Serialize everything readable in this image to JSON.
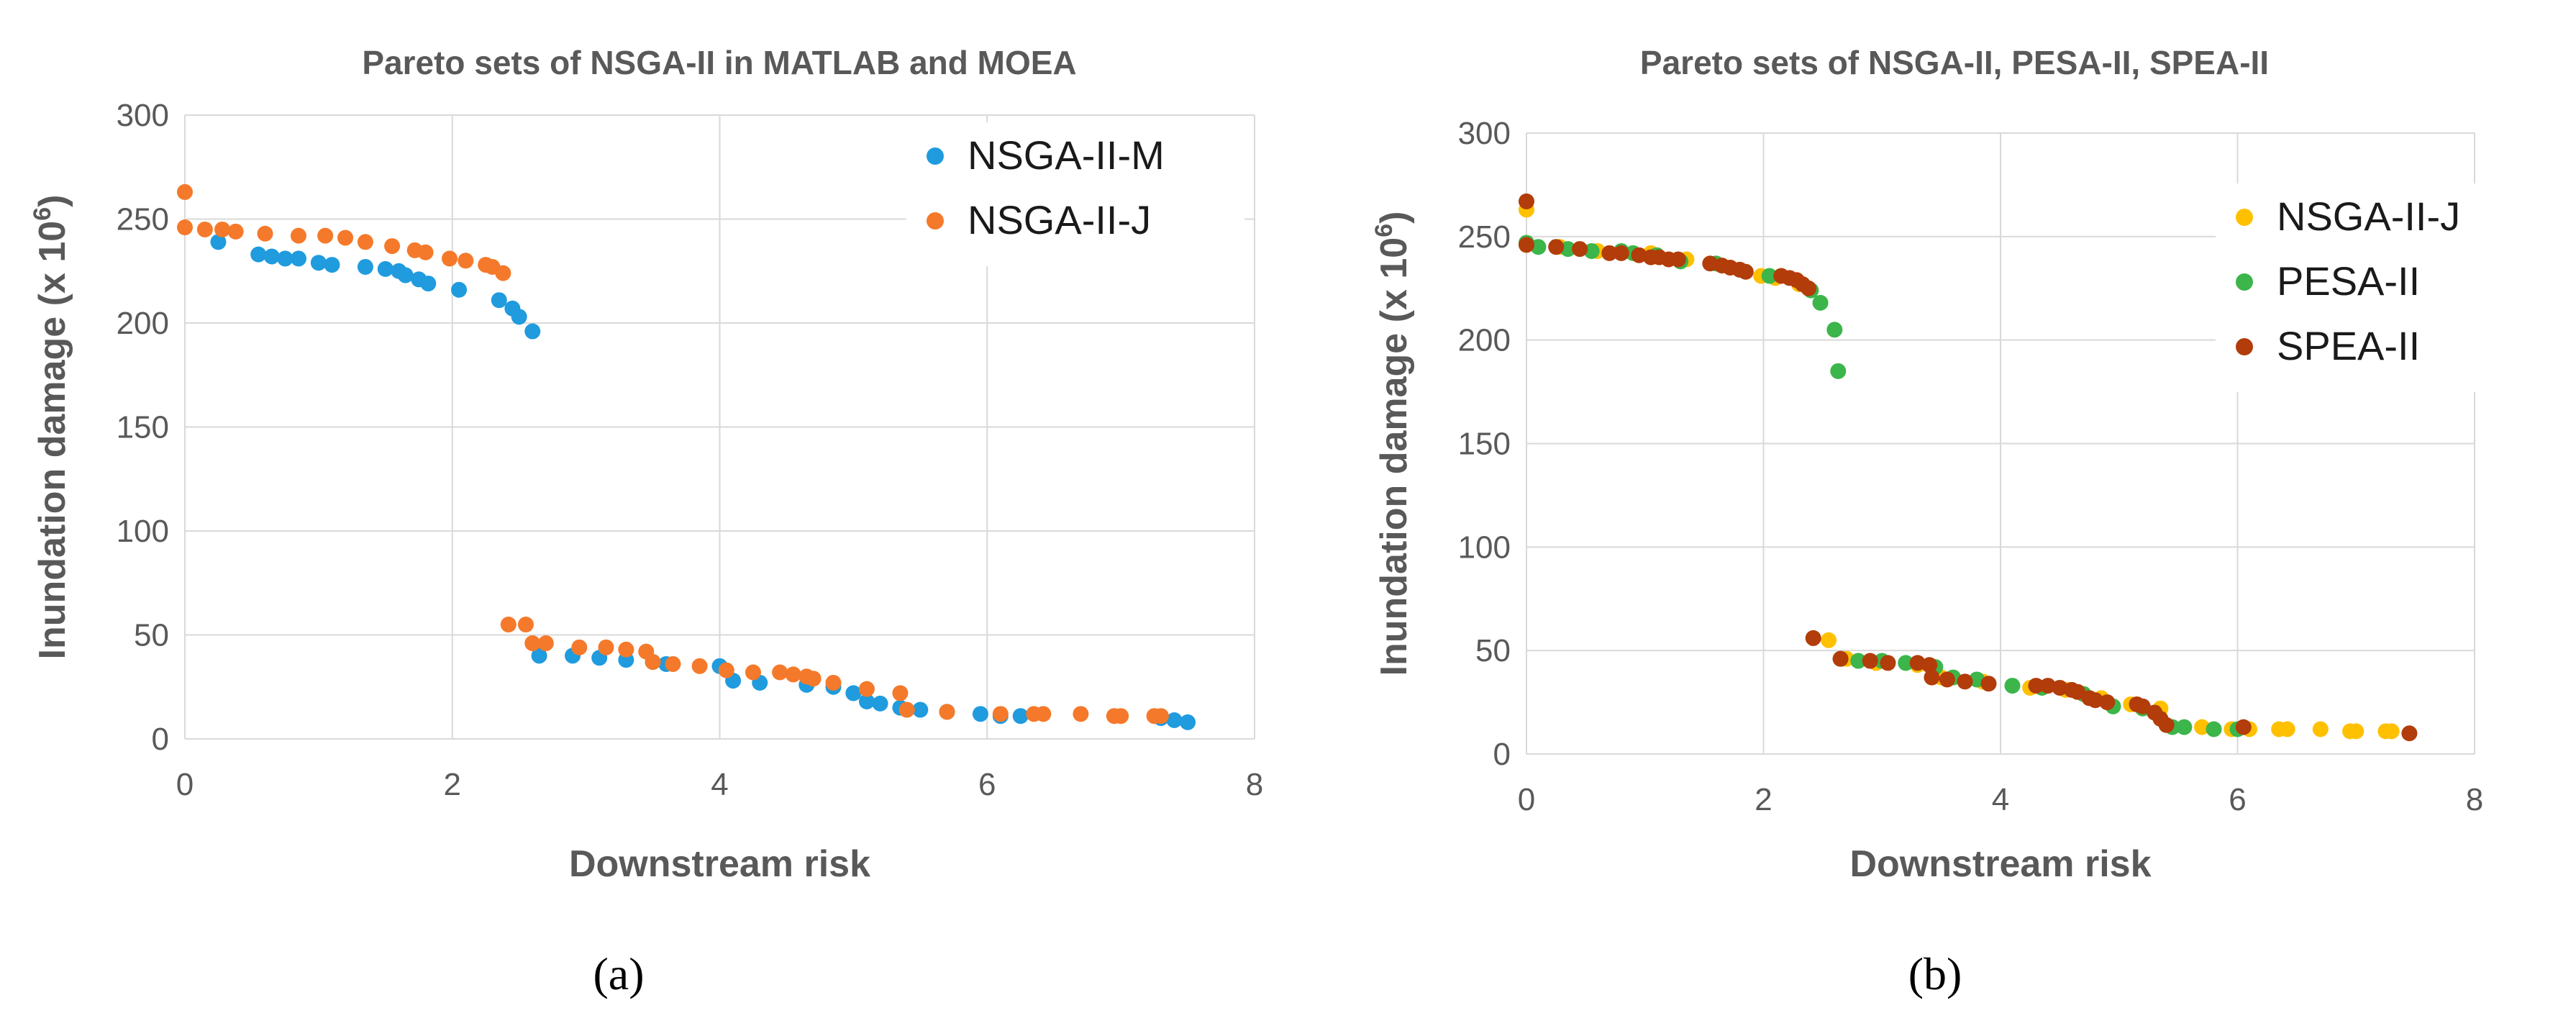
{
  "chart_data": [
    {
      "type": "scatter",
      "panel_label": "(a)",
      "title": "Pareto sets of NSGA-II in MATLAB and MOEA",
      "xlabel": "Downstream risk",
      "ylabel": "Inundation damage (x 10",
      "ylabel_exponent": "6",
      "ylabel_close": ")",
      "xlim": [
        0,
        8
      ],
      "ylim": [
        0,
        300
      ],
      "xticks": [
        0,
        2,
        4,
        6,
        8
      ],
      "yticks": [
        0,
        50,
        100,
        150,
        200,
        250,
        300
      ],
      "grid": true,
      "legend_position": "top-right",
      "series": [
        {
          "name": "NSGA-II-M",
          "color": "#1f9bde",
          "points": [
            [
              0.25,
              239
            ],
            [
              0.55,
              233
            ],
            [
              0.65,
              232
            ],
            [
              0.75,
              231
            ],
            [
              0.85,
              231
            ],
            [
              1.0,
              229
            ],
            [
              1.1,
              228
            ],
            [
              1.35,
              227
            ],
            [
              1.5,
              226
            ],
            [
              1.6,
              225
            ],
            [
              1.65,
              223
            ],
            [
              1.75,
              221
            ],
            [
              1.82,
              219
            ],
            [
              2.05,
              216
            ],
            [
              2.35,
              211
            ],
            [
              2.45,
              207
            ],
            [
              2.5,
              203
            ],
            [
              2.6,
              196
            ],
            [
              2.65,
              40
            ],
            [
              2.9,
              40
            ],
            [
              3.1,
              39
            ],
            [
              3.3,
              38
            ],
            [
              3.5,
              37
            ],
            [
              3.6,
              36
            ],
            [
              4.0,
              35
            ],
            [
              4.1,
              28
            ],
            [
              4.3,
              27
            ],
            [
              4.65,
              26
            ],
            [
              4.85,
              25
            ],
            [
              5.0,
              22
            ],
            [
              5.1,
              18
            ],
            [
              5.2,
              17
            ],
            [
              5.35,
              15
            ],
            [
              5.5,
              14
            ],
            [
              5.7,
              13
            ],
            [
              5.95,
              12
            ],
            [
              6.1,
              11
            ],
            [
              6.25,
              11
            ],
            [
              7.3,
              10
            ],
            [
              7.4,
              9
            ],
            [
              7.5,
              8
            ]
          ]
        },
        {
          "name": "NSGA-II-J",
          "color": "#f5792a",
          "points": [
            [
              0.0,
              263
            ],
            [
              0.0,
              246
            ],
            [
              0.15,
              245
            ],
            [
              0.28,
              245
            ],
            [
              0.38,
              244
            ],
            [
              0.6,
              243
            ],
            [
              0.85,
              242
            ],
            [
              1.05,
              242
            ],
            [
              1.2,
              241
            ],
            [
              1.35,
              239
            ],
            [
              1.55,
              237
            ],
            [
              1.72,
              235
            ],
            [
              1.8,
              234
            ],
            [
              1.98,
              231
            ],
            [
              2.1,
              230
            ],
            [
              2.25,
              228
            ],
            [
              2.3,
              227
            ],
            [
              2.38,
              224
            ],
            [
              2.42,
              55
            ],
            [
              2.55,
              55
            ],
            [
              2.6,
              46
            ],
            [
              2.7,
              46
            ],
            [
              2.95,
              44
            ],
            [
              3.15,
              44
            ],
            [
              3.3,
              43
            ],
            [
              3.45,
              42
            ],
            [
              3.5,
              37
            ],
            [
              3.65,
              36
            ],
            [
              3.85,
              35
            ],
            [
              4.05,
              33
            ],
            [
              4.25,
              32
            ],
            [
              4.45,
              32
            ],
            [
              4.55,
              31
            ],
            [
              4.65,
              30
            ],
            [
              4.7,
              29
            ],
            [
              4.85,
              27
            ],
            [
              5.1,
              24
            ],
            [
              5.35,
              22
            ],
            [
              5.4,
              14
            ],
            [
              5.7,
              13
            ],
            [
              6.1,
              12
            ],
            [
              6.35,
              12
            ],
            [
              6.42,
              12
            ],
            [
              6.7,
              12
            ],
            [
              6.95,
              11
            ],
            [
              7.0,
              11
            ],
            [
              7.25,
              11
            ],
            [
              7.3,
              11
            ]
          ]
        }
      ]
    },
    {
      "type": "scatter",
      "panel_label": "(b)",
      "title": "Pareto sets of NSGA-II, PESA-II, SPEA-II",
      "xlabel": "Downstream risk",
      "ylabel": "Inundation damage (x 10",
      "ylabel_exponent": "6",
      "ylabel_close": ")",
      "xlim": [
        0,
        8
      ],
      "ylim": [
        0,
        300
      ],
      "xticks": [
        0,
        2,
        4,
        6,
        8
      ],
      "yticks": [
        0,
        50,
        100,
        150,
        200,
        250,
        300
      ],
      "grid": true,
      "legend_position": "top-right",
      "series": [
        {
          "name": "NSGA-II-J",
          "color": "#ffc000",
          "points": [
            [
              0.0,
              263
            ],
            [
              0.0,
              246
            ],
            [
              0.28,
              245
            ],
            [
              0.6,
              243
            ],
            [
              1.05,
              242
            ],
            [
              1.35,
              239
            ],
            [
              1.72,
              235
            ],
            [
              1.98,
              231
            ],
            [
              2.1,
              230
            ],
            [
              2.3,
              227
            ],
            [
              2.55,
              55
            ],
            [
              2.7,
              46
            ],
            [
              2.95,
              44
            ],
            [
              3.3,
              43
            ],
            [
              3.5,
              37
            ],
            [
              3.85,
              35
            ],
            [
              4.25,
              32
            ],
            [
              4.55,
              31
            ],
            [
              4.7,
              29
            ],
            [
              4.85,
              27
            ],
            [
              5.1,
              24
            ],
            [
              5.35,
              22
            ],
            [
              5.7,
              13
            ],
            [
              5.95,
              12
            ],
            [
              6.1,
              12
            ],
            [
              6.35,
              12
            ],
            [
              6.42,
              12
            ],
            [
              6.7,
              12
            ],
            [
              6.95,
              11
            ],
            [
              7.0,
              11
            ],
            [
              7.25,
              11
            ],
            [
              7.3,
              11
            ]
          ]
        },
        {
          "name": "PESA-II",
          "color": "#3cb54a",
          "points": [
            [
              0.0,
              247
            ],
            [
              0.1,
              245
            ],
            [
              0.35,
              244
            ],
            [
              0.55,
              243
            ],
            [
              0.8,
              243
            ],
            [
              0.9,
              242
            ],
            [
              1.1,
              241
            ],
            [
              1.3,
              238
            ],
            [
              1.6,
              237
            ],
            [
              1.8,
              234
            ],
            [
              2.05,
              231
            ],
            [
              2.4,
              224
            ],
            [
              2.48,
              218
            ],
            [
              2.6,
              205
            ],
            [
              2.63,
              185
            ],
            [
              2.65,
              46
            ],
            [
              2.8,
              45
            ],
            [
              3.0,
              45
            ],
            [
              3.2,
              44
            ],
            [
              3.45,
              42
            ],
            [
              3.6,
              37
            ],
            [
              3.8,
              36
            ],
            [
              4.1,
              33
            ],
            [
              4.35,
              32
            ],
            [
              4.7,
              29
            ],
            [
              4.95,
              23
            ],
            [
              5.2,
              22
            ],
            [
              5.45,
              13
            ],
            [
              5.55,
              13
            ],
            [
              5.8,
              12
            ],
            [
              6.0,
              12
            ]
          ]
        },
        {
          "name": "SPEA-II",
          "color": "#b23c0a",
          "points": [
            [
              0.0,
              267
            ],
            [
              0.0,
              246
            ],
            [
              0.25,
              245
            ],
            [
              0.45,
              244
            ],
            [
              0.7,
              242
            ],
            [
              0.8,
              242
            ],
            [
              0.95,
              241
            ],
            [
              1.05,
              240
            ],
            [
              1.12,
              240
            ],
            [
              1.2,
              239
            ],
            [
              1.28,
              239
            ],
            [
              1.55,
              237
            ],
            [
              1.65,
              236
            ],
            [
              1.72,
              235
            ],
            [
              1.8,
              234
            ],
            [
              1.85,
              233
            ],
            [
              2.15,
              231
            ],
            [
              2.22,
              230
            ],
            [
              2.28,
              229
            ],
            [
              2.33,
              227
            ],
            [
              2.38,
              225
            ],
            [
              2.42,
              56
            ],
            [
              2.65,
              46
            ],
            [
              2.9,
              45
            ],
            [
              3.05,
              44
            ],
            [
              3.3,
              44
            ],
            [
              3.4,
              43
            ],
            [
              3.42,
              37
            ],
            [
              3.55,
              36
            ],
            [
              3.7,
              35
            ],
            [
              3.9,
              34
            ],
            [
              4.3,
              33
            ],
            [
              4.4,
              33
            ],
            [
              4.5,
              32
            ],
            [
              4.6,
              31
            ],
            [
              4.65,
              30
            ],
            [
              4.75,
              27
            ],
            [
              4.8,
              26
            ],
            [
              4.9,
              25
            ],
            [
              5.15,
              24
            ],
            [
              5.2,
              23
            ],
            [
              5.3,
              20
            ],
            [
              5.35,
              17
            ],
            [
              5.4,
              14
            ],
            [
              6.05,
              13
            ],
            [
              7.45,
              10
            ]
          ]
        }
      ]
    }
  ]
}
